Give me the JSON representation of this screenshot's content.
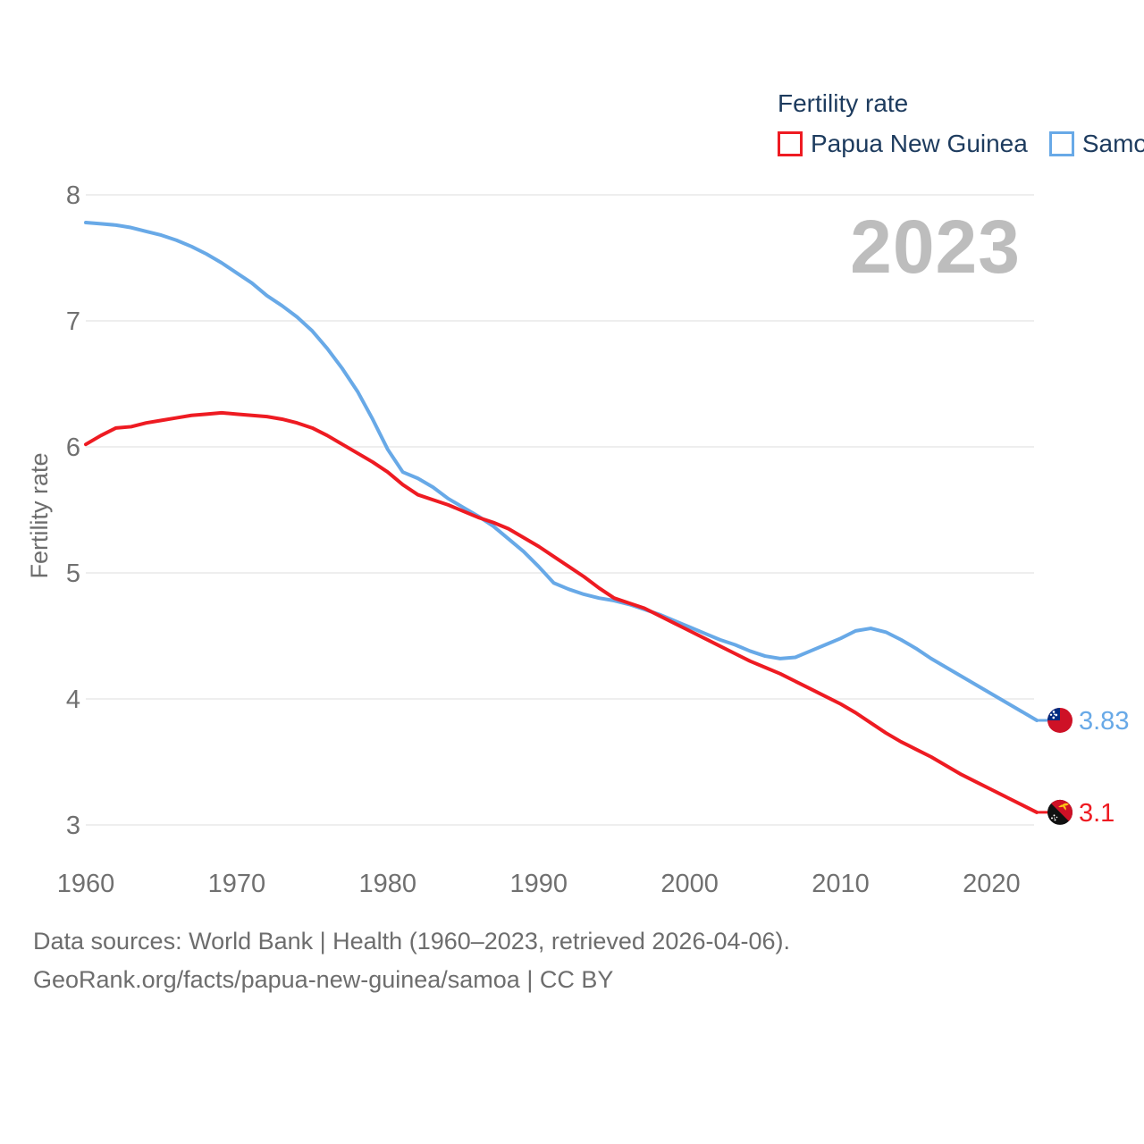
{
  "legend": {
    "title": "Fertility rate",
    "items": [
      {
        "label": "Papua New Guinea",
        "color": "#ee1b22"
      },
      {
        "label": "Samoa",
        "color": "#68a9e7"
      }
    ]
  },
  "watermark": "2023",
  "y_axis_title": "Fertility rate",
  "footer": {
    "line1": "Data sources: World Bank | Health (1960–2023, retrieved 2026-04-06).",
    "line2": "GeoRank.org/facts/papua-new-guinea/samoa | CC BY"
  },
  "colors": {
    "papua_new_guinea_line": "#ee1b22",
    "samoa_line": "#68a9e7",
    "legend_text": "#1d3b5e",
    "axis_text": "#707070",
    "gridline": "#e8e8e8",
    "watermark": "#bdbdbd",
    "footer_text": "#6d6d6d"
  },
  "chart_data": {
    "type": "line",
    "title": "Fertility rate",
    "ylabel": "Fertility rate",
    "xlabel": "",
    "x_range": [
      1960,
      2023
    ],
    "ylim": [
      3,
      8
    ],
    "y_ticks": [
      3,
      4,
      5,
      6,
      7,
      8
    ],
    "x_ticks": [
      1960,
      1970,
      1980,
      1990,
      2000,
      2010,
      2020
    ],
    "grid": "horizontal",
    "legend_position": "top-right",
    "series": [
      {
        "name": "Papua New Guinea",
        "color": "#ee1b22",
        "end_label": "3.1",
        "flag": "papua-new-guinea",
        "values": [
          6.02,
          6.09,
          6.15,
          6.16,
          6.19,
          6.21,
          6.23,
          6.25,
          6.26,
          6.27,
          6.26,
          6.25,
          6.24,
          6.22,
          6.19,
          6.15,
          6.09,
          6.02,
          5.95,
          5.88,
          5.8,
          5.7,
          5.62,
          5.58,
          5.54,
          5.49,
          5.44,
          5.4,
          5.35,
          5.28,
          5.21,
          5.13,
          5.05,
          4.97,
          4.88,
          4.8,
          4.76,
          4.72,
          4.66,
          4.6,
          4.54,
          4.48,
          4.42,
          4.36,
          4.3,
          4.25,
          4.2,
          4.14,
          4.08,
          4.02,
          3.96,
          3.89,
          3.81,
          3.73,
          3.66,
          3.6,
          3.54,
          3.47,
          3.4,
          3.34,
          3.28,
          3.22,
          3.16,
          3.1
        ]
      },
      {
        "name": "Samoa",
        "color": "#68a9e7",
        "end_label": "3.83",
        "flag": "samoa",
        "values": [
          7.78,
          7.77,
          7.76,
          7.74,
          7.71,
          7.68,
          7.64,
          7.59,
          7.53,
          7.46,
          7.38,
          7.3,
          7.2,
          7.12,
          7.03,
          6.92,
          6.78,
          6.62,
          6.44,
          6.22,
          5.98,
          5.8,
          5.75,
          5.68,
          5.59,
          5.52,
          5.45,
          5.37,
          5.27,
          5.17,
          5.05,
          4.92,
          4.87,
          4.83,
          4.8,
          4.78,
          4.75,
          4.71,
          4.67,
          4.62,
          4.57,
          4.52,
          4.47,
          4.43,
          4.38,
          4.34,
          4.32,
          4.33,
          4.38,
          4.43,
          4.48,
          4.54,
          4.56,
          4.53,
          4.47,
          4.4,
          4.32,
          4.25,
          4.18,
          4.11,
          4.04,
          3.97,
          3.9,
          3.83
        ]
      }
    ]
  }
}
